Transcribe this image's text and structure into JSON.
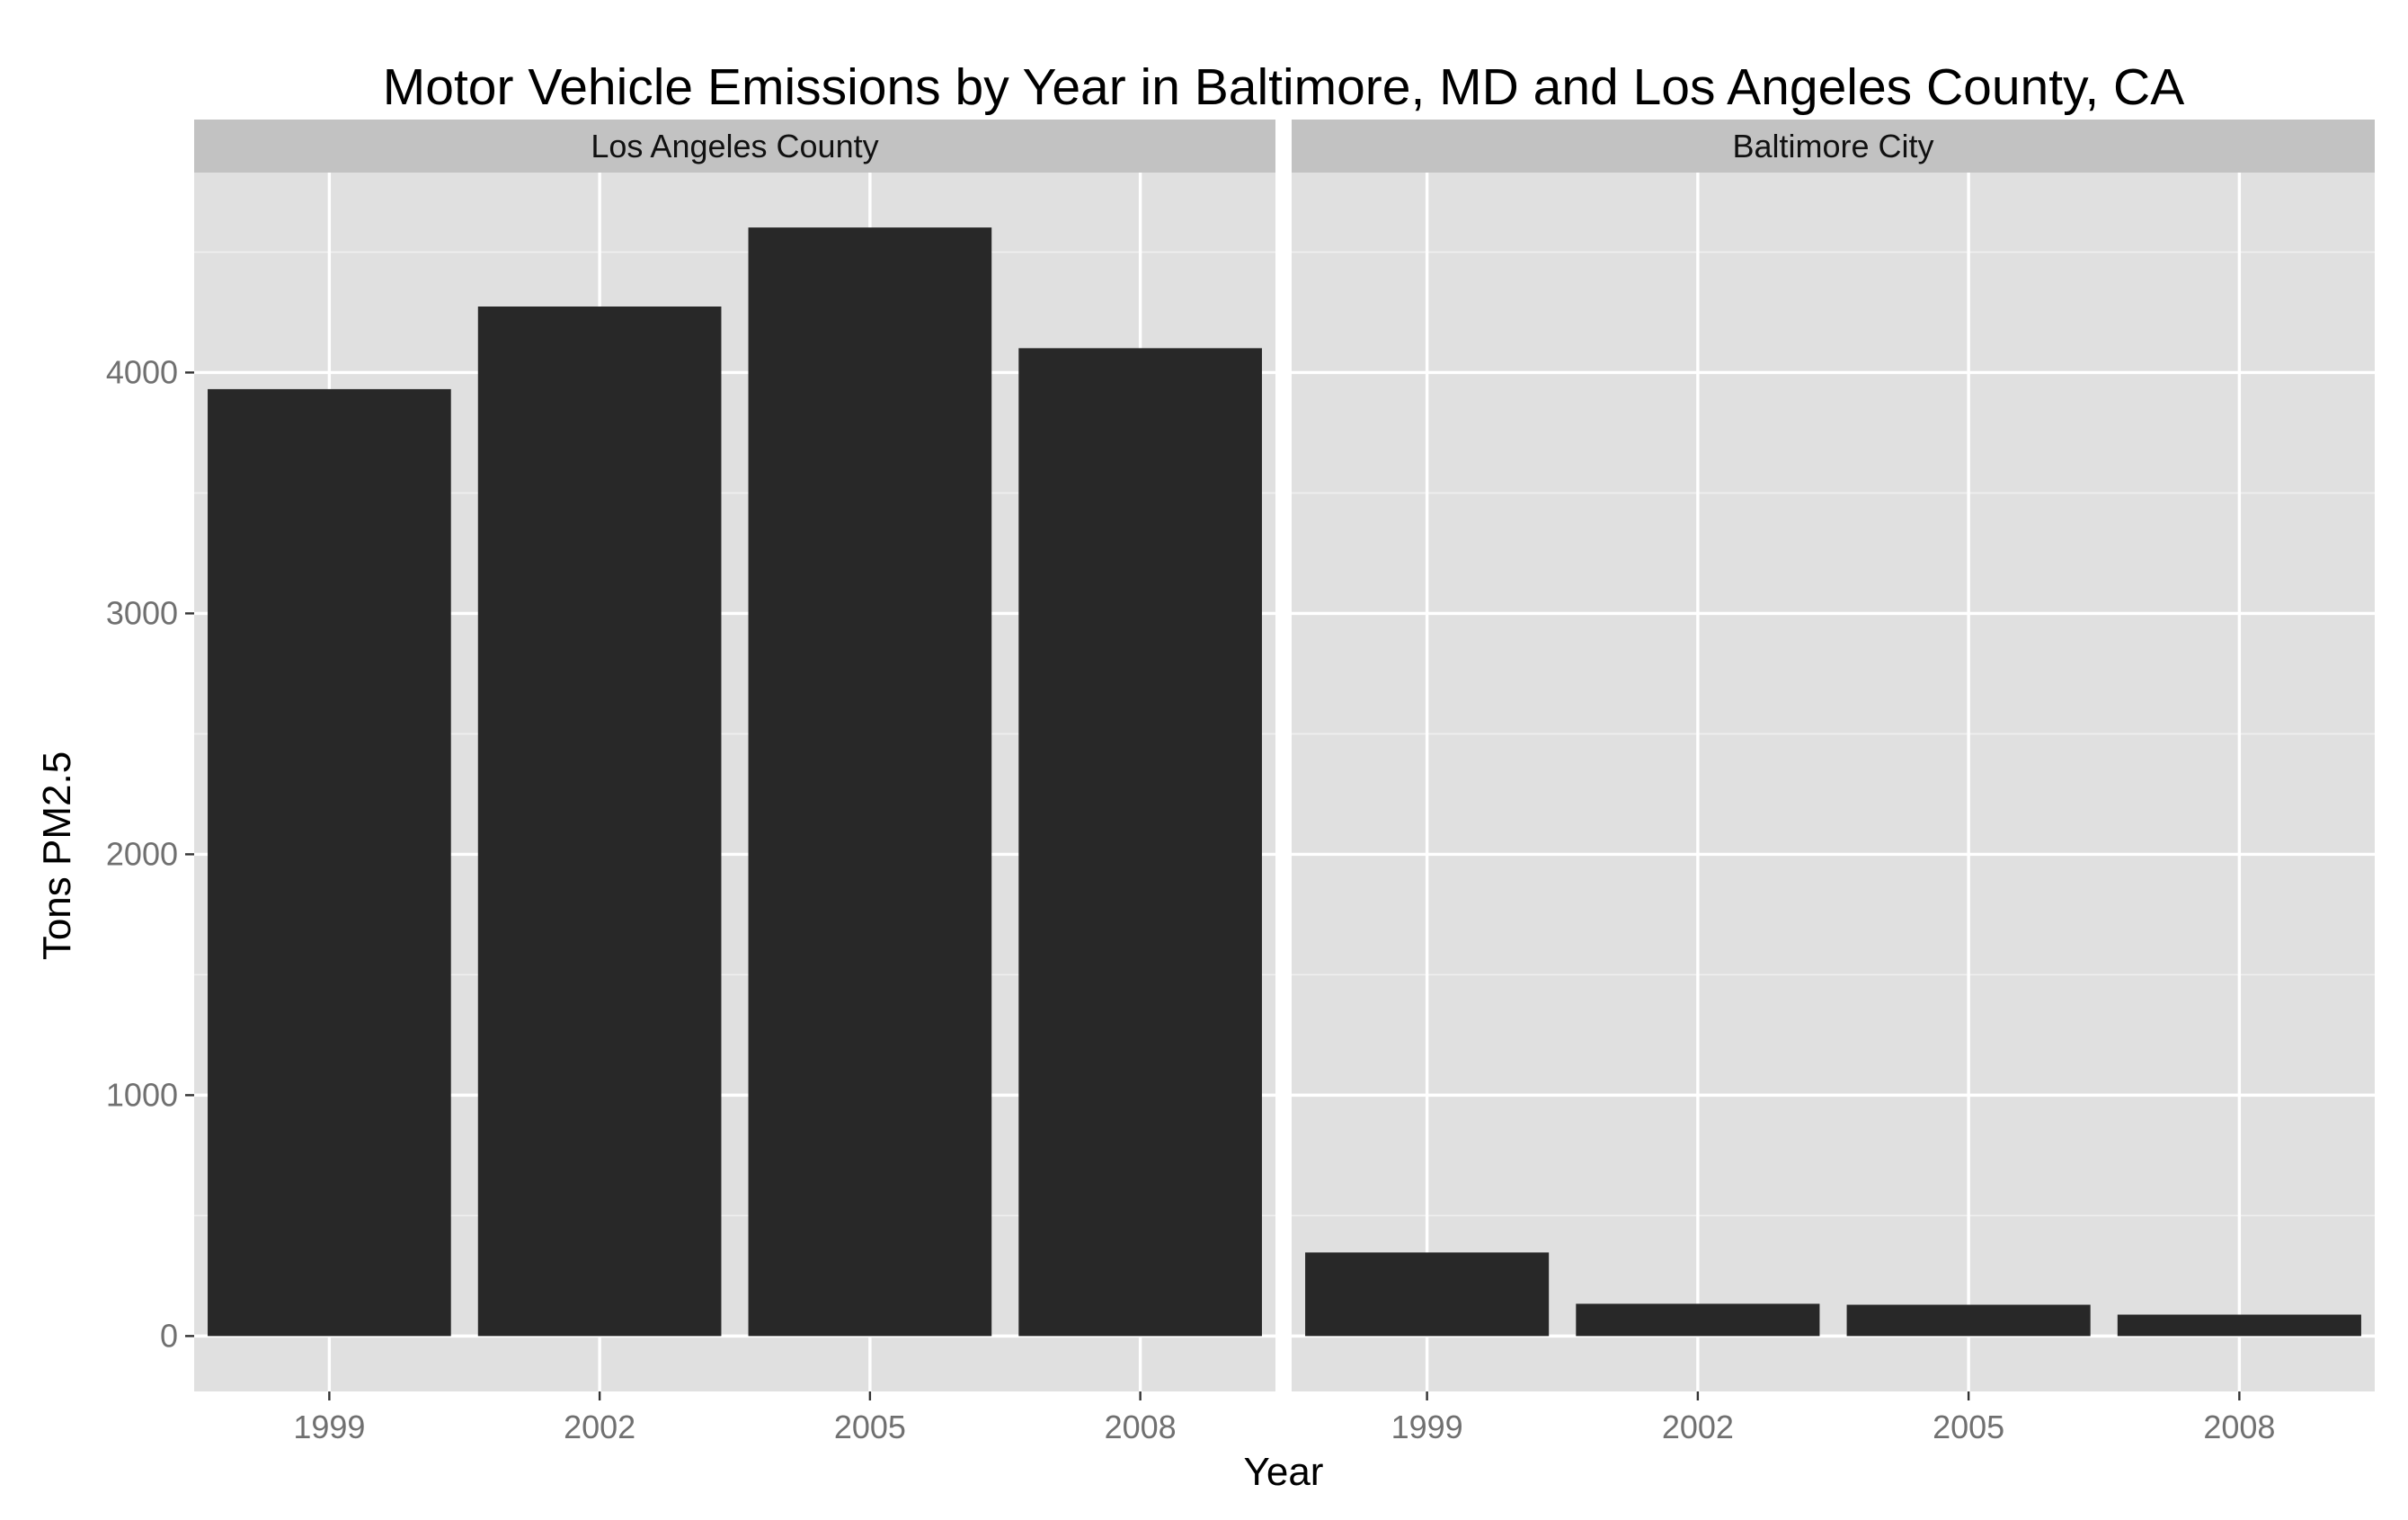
{
  "chart_data": {
    "type": "bar",
    "title": "Motor Vehicle Emissions by Year in Baltimore, MD and Los Angeles County, CA",
    "xlabel": "Year",
    "ylabel": "Tons PM2.5",
    "categories": [
      "1999",
      "2002",
      "2005",
      "2008"
    ],
    "y_ticks": [
      "0",
      "1000",
      "2000",
      "3000",
      "4000"
    ],
    "ylim": [
      -230,
      4830
    ],
    "grid": true,
    "bar_color": "#282828",
    "panel_color": "#e0e0e0",
    "strip_color": "#c2c2c2",
    "facets": [
      {
        "label": "Los Angeles County",
        "values": [
          3931,
          4274,
          4602,
          4101
        ]
      },
      {
        "label": "Baltimore City",
        "values": [
          347,
          134,
          130,
          89
        ]
      }
    ]
  }
}
